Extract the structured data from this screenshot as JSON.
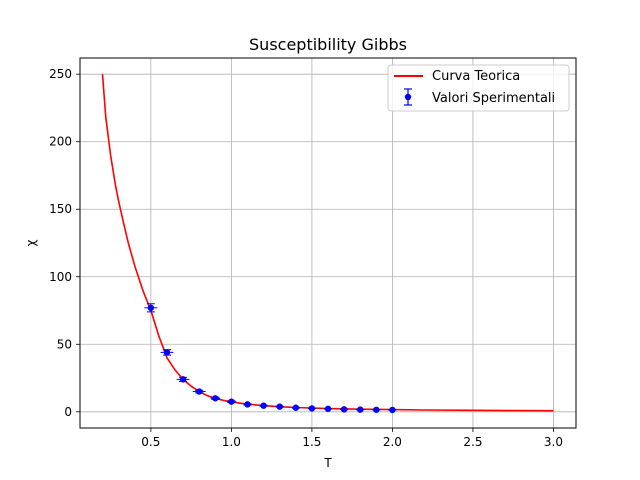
{
  "chart_data": {
    "type": "line",
    "title": "Susceptibility Gibbs",
    "xlabel": "T",
    "ylabel": "χ",
    "xlim": [
      0.06,
      3.14
    ],
    "ylim": [
      -12,
      262
    ],
    "x_ticks": [
      0.5,
      1.0,
      1.5,
      2.0,
      2.5,
      3.0
    ],
    "x_tick_labels": [
      "0.5",
      "1.0",
      "1.5",
      "2.0",
      "2.5",
      "3.0"
    ],
    "y_ticks": [
      0,
      50,
      100,
      150,
      200,
      250
    ],
    "y_tick_labels": [
      "0",
      "50",
      "100",
      "150",
      "200",
      "250"
    ],
    "grid": true,
    "legend_position": "top-right",
    "series": [
      {
        "name": "Curva Teorica",
        "kind": "line",
        "color": "#ff0000",
        "x": [
          0.2,
          0.22,
          0.25,
          0.28,
          0.3,
          0.33,
          0.36,
          0.4,
          0.45,
          0.5,
          0.55,
          0.6,
          0.65,
          0.7,
          0.75,
          0.8,
          0.85,
          0.9,
          0.95,
          1.0,
          1.1,
          1.2,
          1.3,
          1.4,
          1.5,
          1.6,
          1.8,
          2.0,
          2.2,
          2.5,
          2.8,
          3.0
        ],
        "y": [
          250,
          218,
          190,
          168,
          156,
          140,
          125,
          108,
          90,
          75,
          56,
          40,
          31,
          24,
          19,
          15,
          12,
          10,
          8.5,
          7.3,
          5.6,
          4.6,
          3.8,
          3.2,
          2.8,
          2.4,
          1.9,
          1.6,
          1.35,
          1.1,
          0.9,
          0.8
        ]
      },
      {
        "name": "Valori Sperimentali",
        "kind": "errorbar",
        "color": "#0000ff",
        "x": [
          0.5,
          0.6,
          0.7,
          0.8,
          0.9,
          1.0,
          1.1,
          1.2,
          1.3,
          1.4,
          1.5,
          1.6,
          1.7,
          1.8,
          1.9,
          2.0
        ],
        "y": [
          77,
          44,
          24,
          15,
          10,
          7.5,
          5.5,
          4.5,
          3.8,
          3.0,
          2.5,
          2.2,
          1.8,
          1.6,
          1.5,
          1.4
        ],
        "xerr": [
          0.04,
          0.04,
          0.04,
          0.04,
          0.03,
          0.03,
          0.02,
          0.02,
          0.02,
          0.02,
          0.02,
          0.01,
          0.01,
          0.01,
          0.01,
          0.01
        ],
        "yerr": [
          3,
          2,
          1.5,
          1,
          0.8,
          0.6,
          0.5,
          0.4,
          0.3,
          0.3,
          0.2,
          0.2,
          0.2,
          0.2,
          0.2,
          0.2
        ]
      }
    ]
  }
}
